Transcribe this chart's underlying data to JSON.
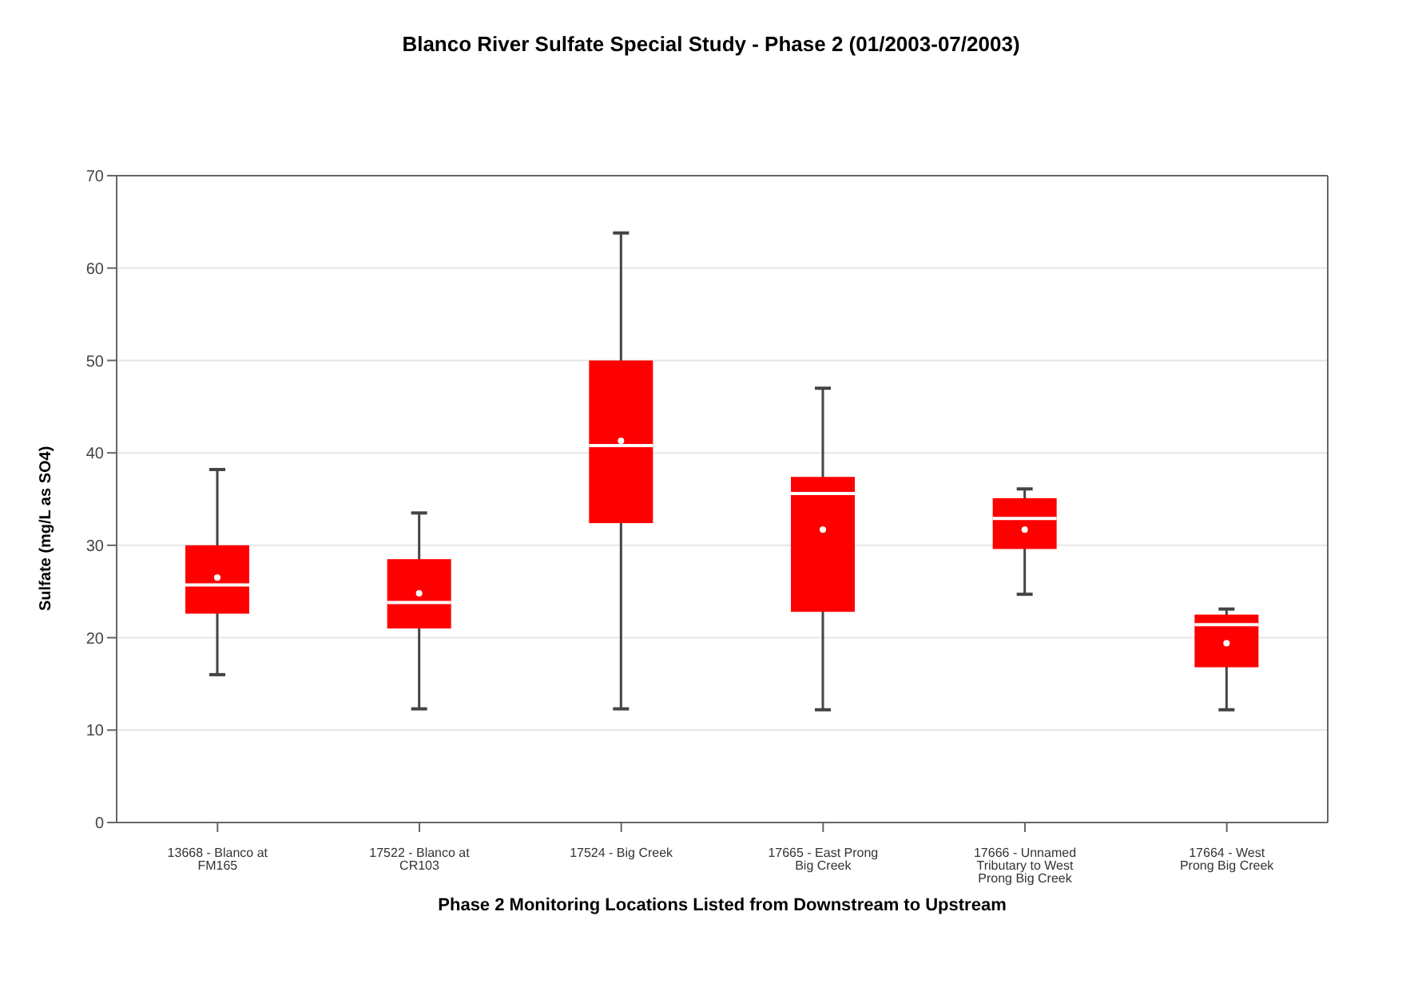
{
  "chart_data": {
    "type": "box",
    "title": "Blanco River Sulfate Special Study - Phase 2 (01/2003-07/2003)",
    "xlabel": "Phase 2 Monitoring Locations Listed from Downstream to Upstream",
    "ylabel": "Sulfate (mg/L as SO4)",
    "categories": [
      "13668 - Blanco at FM165",
      "17522 - Blanco at CR103",
      "17524 - Big Creek",
      "17665 - East Prong Big Creek",
      "17666 - Unnamed Tributary to West Prong Big Creek",
      "17664 - West Prong Big Creek"
    ],
    "color": "#ff0000",
    "boxes": [
      {
        "low": 16,
        "q1": 22.6,
        "median": 25.7,
        "q3": 30,
        "high": 38.2,
        "mean": 26.5
      },
      {
        "low": 12.3,
        "q1": 21,
        "median": 23.8,
        "q3": 28.5,
        "high": 33.5,
        "mean": 24.8
      },
      {
        "low": 12.3,
        "q1": 32.4,
        "median": 40.8,
        "q3": 50,
        "high": 63.8,
        "mean": 41.3
      },
      {
        "low": 12.2,
        "q1": 22.8,
        "median": 35.6,
        "q3": 37.4,
        "high": 47,
        "mean": 31.7
      },
      {
        "low": 24.7,
        "q1": 29.6,
        "median": 32.9,
        "q3": 35.1,
        "high": 36.1,
        "mean": 31.7
      },
      {
        "low": 12.2,
        "q1": 16.8,
        "median": 21.4,
        "q3": 22.5,
        "high": 23.1,
        "mean": 19.4
      }
    ],
    "ylim": [
      0,
      70
    ],
    "yticks": [
      0,
      10,
      20,
      30,
      40,
      50,
      60,
      70
    ],
    "grid": "y"
  }
}
